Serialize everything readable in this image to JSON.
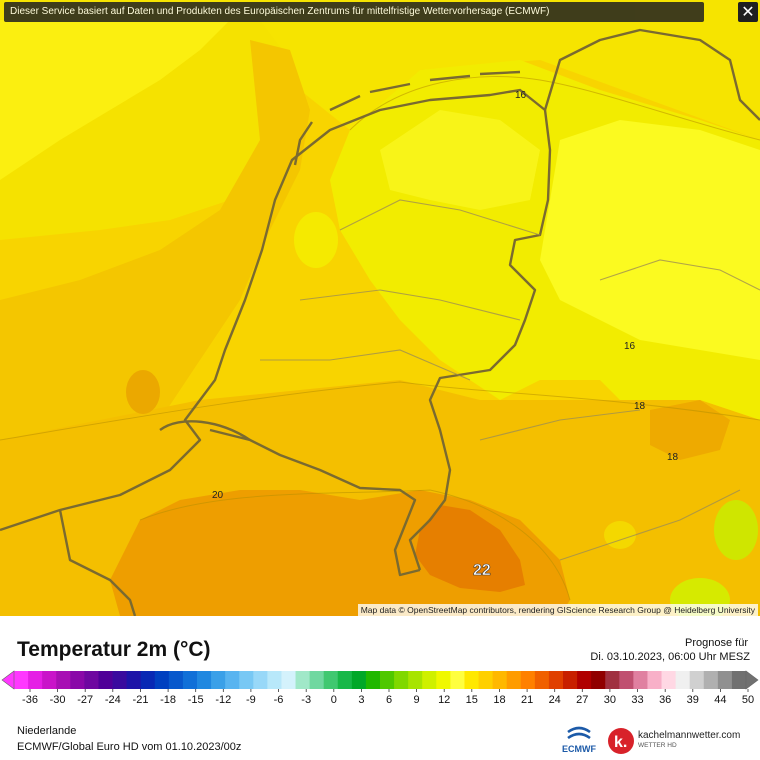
{
  "map": {
    "banner_text": "Dieser Service basiert auf Daten und Produkten des Europäischen Zentrums für mittelfristige Wettervorhersage (ECMWF)",
    "close_symbol": "✕",
    "attribution": "Map data © OpenStreetMap contributors, rendering GIScience Research Group @ Heidelberg University",
    "contour_labels": [
      "16",
      "16",
      "18",
      "18",
      "20"
    ],
    "value_label": "22",
    "colors": {
      "yellow": "#f2f200",
      "light_yellow": "#ffff2a",
      "gold": "#f8d400",
      "orange_gold": "#f2b800",
      "orange": "#ec9a00",
      "deep_orange": "#e47e00",
      "lime": "#cfe600",
      "sea": "#f4c200",
      "border": "#7a6a30"
    }
  },
  "legend": {
    "title": "Temperatur 2m (°C)",
    "forecast_label": "Prognose für",
    "forecast_time": "Di. 03.10.2023, 06:00 Uhr MESZ",
    "scale_ticks": [
      "-36",
      "-30",
      "-27",
      "-24",
      "-21",
      "-18",
      "-15",
      "-12",
      "-9",
      "-6",
      "-3",
      "0",
      "3",
      "6",
      "9",
      "12",
      "15",
      "18",
      "21",
      "24",
      "27",
      "30",
      "33",
      "36",
      "39",
      "44",
      "50"
    ],
    "scale_colors": [
      "#ff38ff",
      "#e51fe5",
      "#c914c9",
      "#a80fb4",
      "#8a08a8",
      "#6e07a0",
      "#500098",
      "#3a0a9e",
      "#1e14a8",
      "#0828b4",
      "#0040c0",
      "#0858cc",
      "#1070d8",
      "#2088e0",
      "#3aa0e8",
      "#58b4f0",
      "#78c8f4",
      "#98d8f8",
      "#b8e8fa",
      "#d4f2fc",
      "#a0e8c8",
      "#70d8a0",
      "#40c870",
      "#18b848",
      "#00a828",
      "#20b800",
      "#50c800",
      "#80d800",
      "#a8e400",
      "#cff000",
      "#f0f800",
      "#ffff40",
      "#ffe800",
      "#ffd000",
      "#ffb800",
      "#ff9c00",
      "#ff8000",
      "#f06000",
      "#e04000",
      "#c82000",
      "#b00000",
      "#900000",
      "#a03040",
      "#c05070",
      "#e080a0",
      "#f8b0c8",
      "#ffd8e4",
      "#f0f0f0",
      "#d0d0d0",
      "#b0b0b0",
      "#909090",
      "#707070"
    ],
    "region": "Niederlande",
    "model_run": "ECMWF/Global Euro HD vom  01.10.2023/00z"
  },
  "logos": {
    "ecmwf": "ECMWF",
    "kachelmann": "kachelmannwetter.com",
    "kachelmann_sub": "WETTER HD",
    "kachelmann_letter": "k."
  }
}
